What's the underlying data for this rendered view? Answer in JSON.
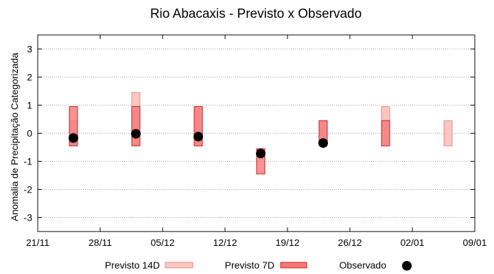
{
  "chart_data": {
    "type": "bar",
    "title": "Rio Abacaxis - Previsto x Observado",
    "xlabel": "",
    "ylabel": "Anomalia de Precipitação Categorizada",
    "x_axis": {
      "ticks": [
        "21/11",
        "28/11",
        "05/12",
        "12/12",
        "19/12",
        "26/12",
        "02/01",
        "09/01"
      ],
      "range": [
        "21/11",
        "09/01"
      ]
    },
    "ylim": [
      -3.5,
      3.5
    ],
    "y_ticks": [
      -3,
      -2,
      -1,
      0,
      1,
      2,
      3
    ],
    "grid": true,
    "legend_position": "bottom",
    "colors": {
      "previsto_14d_fill": "#f9c6c0",
      "previsto_14d_edge": "#e88b86",
      "previsto_7d_fill": "#f47878",
      "previsto_7d_edge": "#c81e1e",
      "observado": "#000000",
      "grid": "#999999"
    },
    "series": [
      {
        "name": "Previsto 14D",
        "kind": "range",
        "points": [
          {
            "date": "25/11",
            "low": -0.45,
            "high": 0.45
          },
          {
            "date": "02/12",
            "low": -0.45,
            "high": 1.45
          },
          {
            "date": "09/12",
            "low": -0.45,
            "high": 0.95
          },
          {
            "date": "23/12",
            "low": -0.45,
            "high": 0.45
          },
          {
            "date": "30/12",
            "low": -0.45,
            "high": 0.95
          },
          {
            "date": "06/01",
            "low": -0.45,
            "high": 0.45
          }
        ]
      },
      {
        "name": "Previsto 7D",
        "kind": "range",
        "points": [
          {
            "date": "25/11",
            "low": -0.45,
            "high": 0.95
          },
          {
            "date": "02/12",
            "low": -0.45,
            "high": 0.95
          },
          {
            "date": "09/12",
            "low": -0.45,
            "high": 0.95
          },
          {
            "date": "16/12",
            "low": -1.45,
            "high": -0.55
          },
          {
            "date": "23/12",
            "low": -0.35,
            "high": 0.45
          },
          {
            "date": "30/12",
            "low": -0.45,
            "high": 0.45
          }
        ]
      },
      {
        "name": "Observado",
        "kind": "point",
        "points": [
          {
            "date": "25/11",
            "value": -0.17
          },
          {
            "date": "02/12",
            "value": -0.02
          },
          {
            "date": "09/12",
            "value": -0.12
          },
          {
            "date": "16/12",
            "value": -0.72
          },
          {
            "date": "23/12",
            "value": -0.35
          }
        ]
      }
    ]
  }
}
